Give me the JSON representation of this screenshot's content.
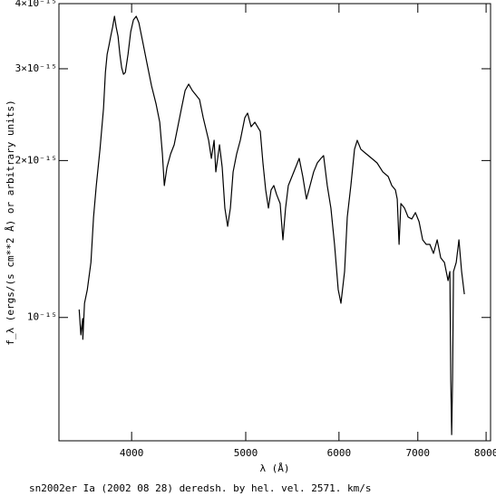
{
  "chart_data": {
    "type": "line",
    "xscale": "log",
    "yscale": "log",
    "x_label": "λ (Å)",
    "y_label": "f_λ (ergs/(s cm**2 Å) or arbitrary units)",
    "caption": "sn2002er Ia (2002 08 28) deredsh. by hel. vel.  2571. km/s",
    "xlim": [
      3470,
      8070
    ],
    "ylim": [
      5.8e-16,
      4e-15
    ],
    "xticks": [
      4000,
      5000,
      6000,
      7000,
      8000
    ],
    "yticks": [
      {
        "value": 1e-15,
        "label": "10⁻¹⁵"
      },
      {
        "value": 2e-15,
        "label": "2×10⁻¹⁵"
      },
      {
        "value": 3e-15,
        "label": "3×10⁻¹⁵"
      },
      {
        "value": 4e-15,
        "label": "4×10⁻¹⁵"
      }
    ],
    "color": "#000000",
    "x": [
      3610,
      3622,
      3635,
      3636,
      3648,
      3668,
      3694,
      3713,
      3733,
      3760,
      3786,
      3800,
      3813,
      3827,
      3840,
      3854,
      3868,
      3881,
      3895,
      3909,
      3923,
      3937,
      3951,
      3972,
      3993,
      4014,
      4036,
      4057,
      4086,
      4122,
      4159,
      4196,
      4226,
      4248,
      4264,
      4286,
      4317,
      4347,
      4378,
      4409,
      4441,
      4472,
      4504,
      4536,
      4568,
      4601,
      4650,
      4675,
      4700,
      4716,
      4750,
      4775,
      4800,
      4826,
      4852,
      4878,
      4912,
      4947,
      4991,
      5018,
      5053,
      5090,
      5117,
      5144,
      5171,
      5199,
      5227,
      5254,
      5282,
      5311,
      5348,
      5377,
      5405,
      5434,
      5473,
      5512,
      5551,
      5590,
      5630,
      5670,
      5710,
      5751,
      5792,
      5822,
      5864,
      5906,
      5948,
      5991,
      6023,
      6066,
      6098,
      6141,
      6185,
      6218,
      6262,
      6329,
      6397,
      6464,
      6537,
      6606,
      6653,
      6700,
      6724,
      6748,
      6772,
      6820,
      6869,
      6918,
      6967,
      7017,
      7067,
      7116,
      7167,
      7218,
      7270,
      7321,
      7374,
      7400,
      7426,
      7453,
      7466,
      7479,
      7492,
      7506,
      7546,
      7586,
      7626,
      7667
    ],
    "values": [
      1.036e-15,
      9.26e-16,
      9.95e-16,
      9.08e-16,
      1.065e-15,
      1.131e-15,
      1.275e-15,
      1.558e-15,
      1.791e-15,
      2.102e-15,
      2.516e-15,
      2.952e-15,
      3.198e-15,
      3.328e-15,
      3.464e-15,
      3.605e-15,
      3.782e-15,
      3.605e-15,
      3.464e-15,
      3.198e-15,
      3.012e-15,
      2.928e-15,
      2.952e-15,
      3.198e-15,
      3.534e-15,
      3.722e-15,
      3.782e-15,
      3.678e-15,
      3.395e-15,
      3.072e-15,
      2.78e-15,
      2.567e-15,
      2.369e-15,
      2.06e-15,
      1.791e-15,
      1.94e-15,
      2.06e-15,
      2.144e-15,
      2.322e-15,
      2.516e-15,
      2.725e-15,
      2.803e-15,
      2.725e-15,
      2.671e-15,
      2.618e-15,
      2.417e-15,
      2.187e-15,
      2.019e-15,
      2.187e-15,
      1.902e-15,
      2.144e-15,
      1.94e-15,
      1.621e-15,
      1.496e-15,
      1.621e-15,
      1.902e-15,
      2.06e-15,
      2.187e-15,
      2.417e-15,
      2.466e-15,
      2.322e-15,
      2.369e-15,
      2.322e-15,
      2.276e-15,
      1.979e-15,
      1.756e-15,
      1.621e-15,
      1.756e-15,
      1.791e-15,
      1.721e-15,
      1.654e-15,
      1.409e-15,
      1.621e-15,
      1.791e-15,
      1.864e-15,
      1.94e-15,
      2.019e-15,
      1.864e-15,
      1.687e-15,
      1.791e-15,
      1.902e-15,
      1.979e-15,
      2.019e-15,
      2.044e-15,
      1.791e-15,
      1.621e-15,
      1.381e-15,
      1.131e-15,
      1.065e-15,
      1.225e-15,
      1.558e-15,
      1.791e-15,
      2.102e-15,
      2.187e-15,
      2.102e-15,
      2.06e-15,
      2.019e-15,
      1.979e-15,
      1.902e-15,
      1.864e-15,
      1.791e-15,
      1.756e-15,
      1.687e-15,
      1.381e-15,
      1.654e-15,
      1.621e-15,
      1.558e-15,
      1.545e-15,
      1.589e-15,
      1.527e-15,
      1.409e-15,
      1.381e-15,
      1.381e-15,
      1.327e-15,
      1.409e-15,
      1.301e-15,
      1.275e-15,
      1.225e-15,
      1.177e-15,
      1.225e-15,
      7.58e-16,
      5.96e-16,
      7.58e-16,
      1.225e-15,
      1.275e-15,
      1.409e-15,
      1.225e-15,
      1.108e-15
    ]
  }
}
